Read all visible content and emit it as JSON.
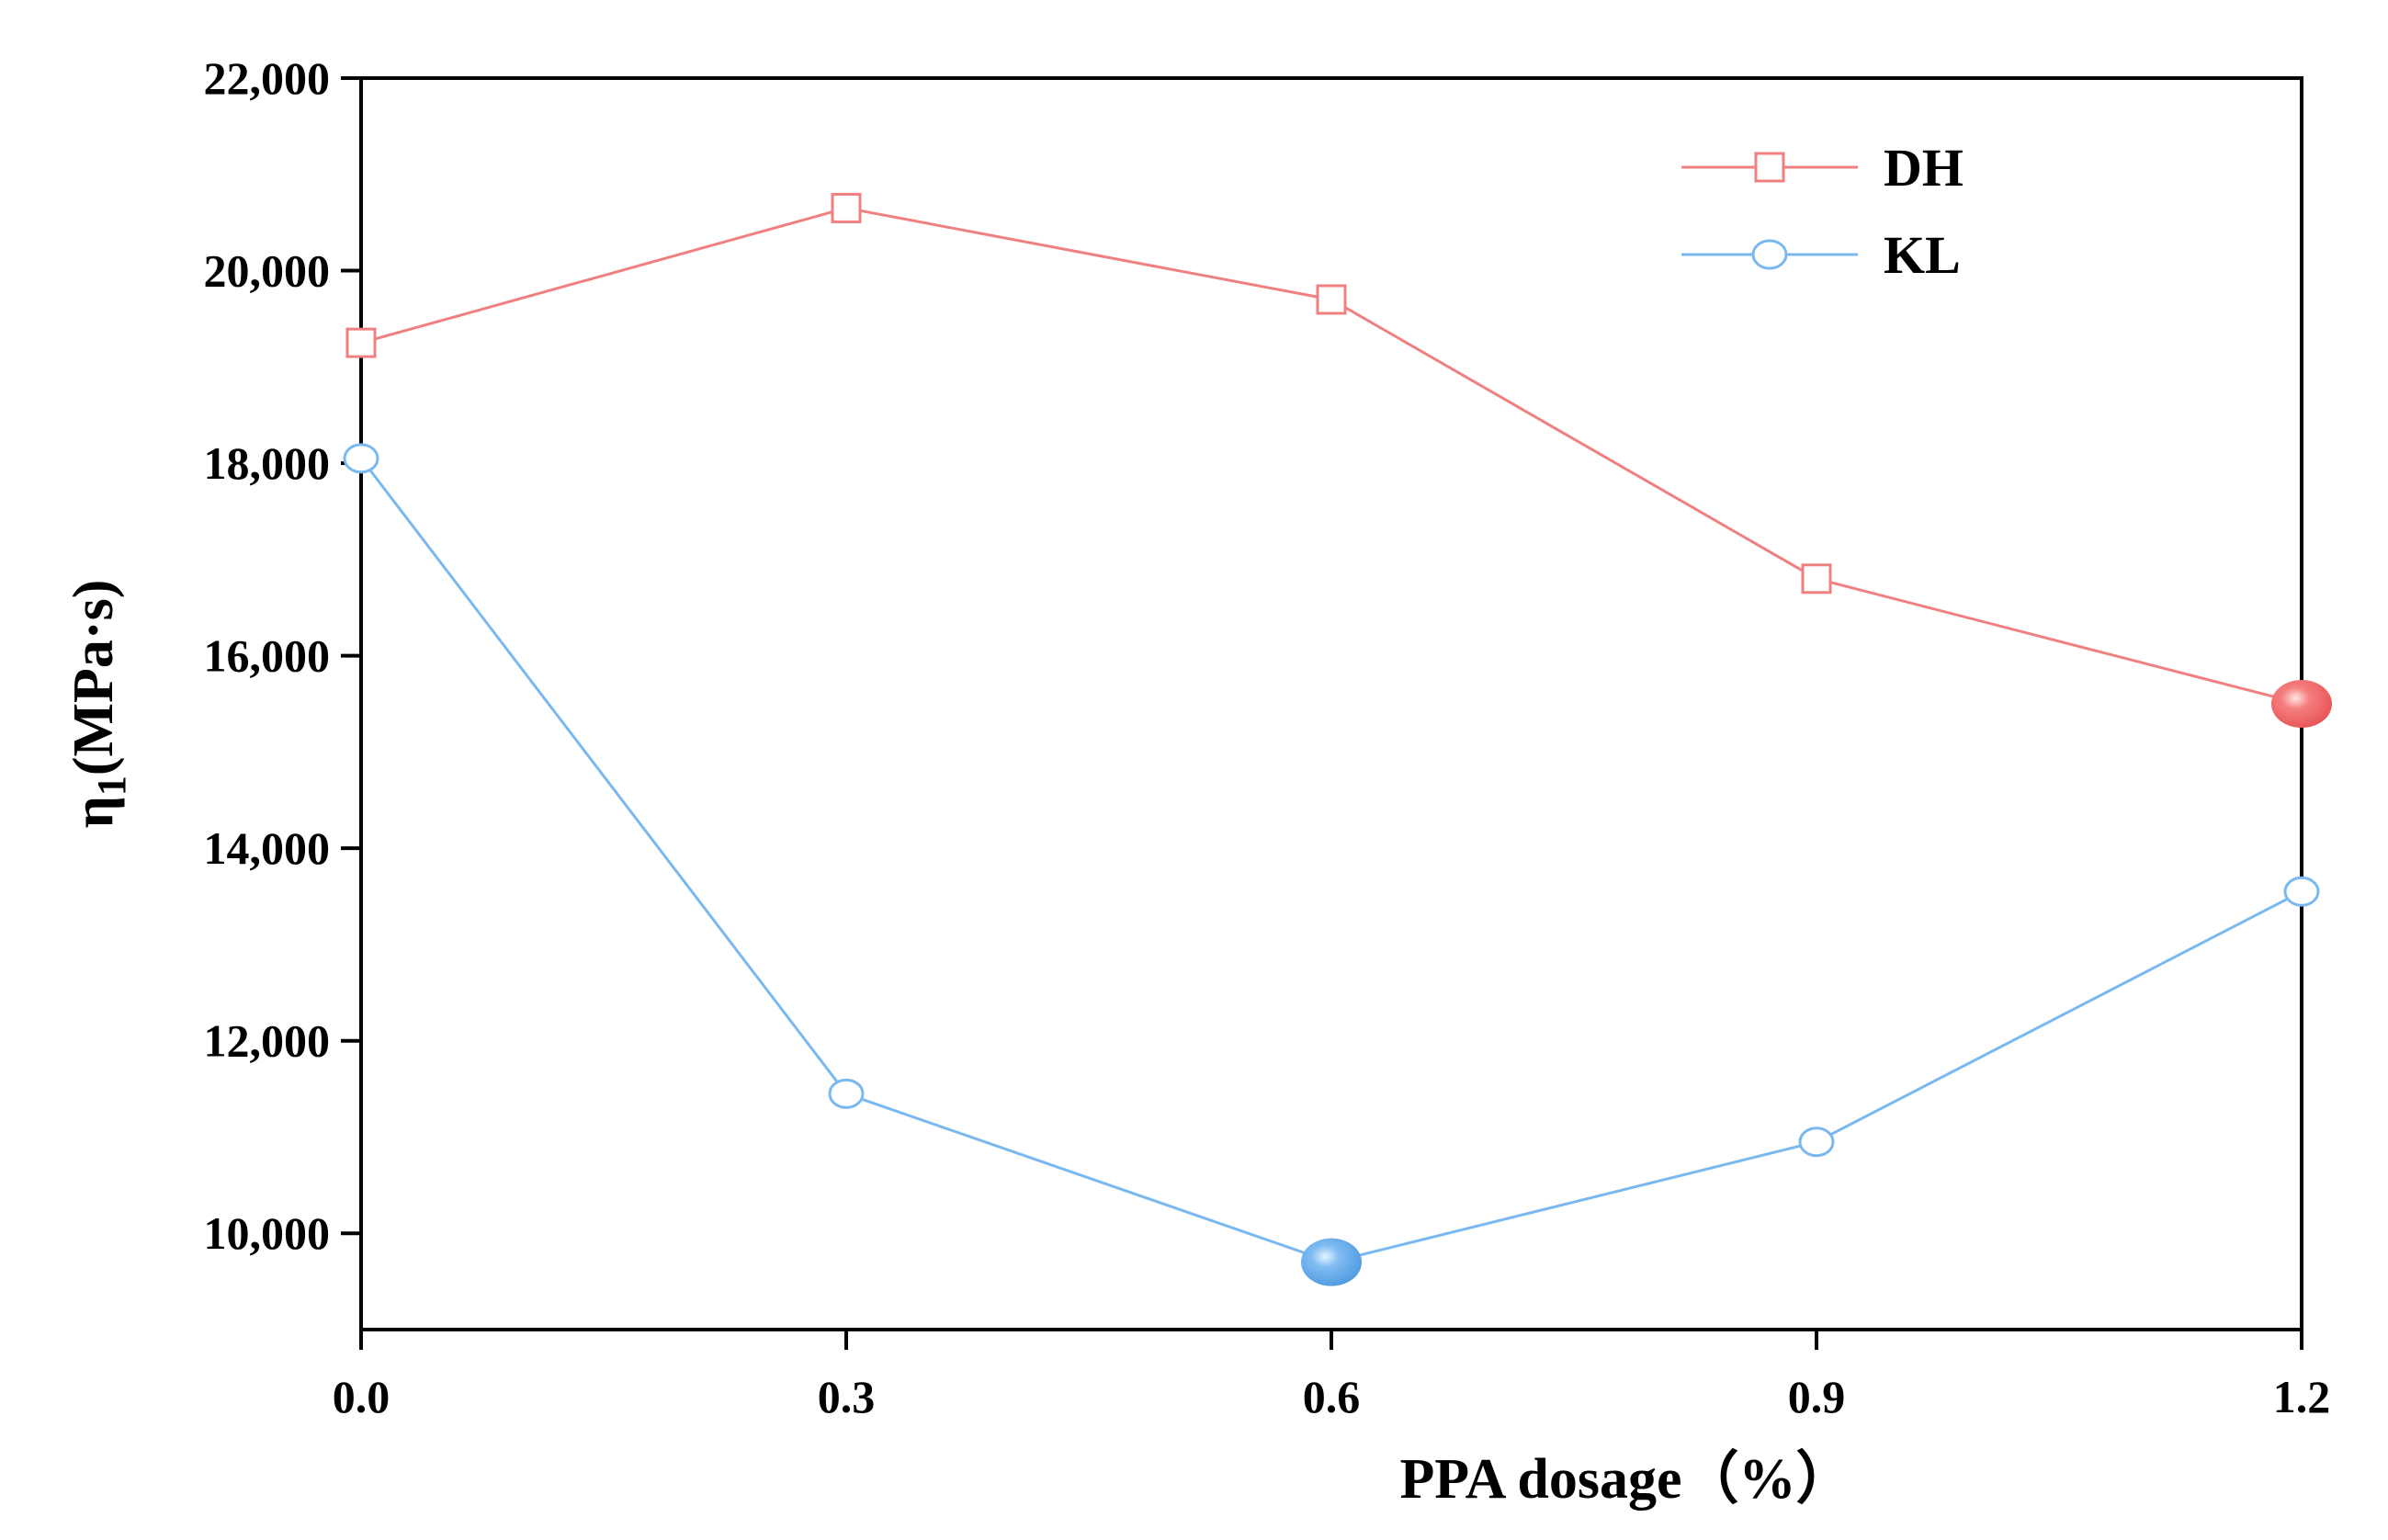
{
  "chart_data": {
    "type": "line",
    "xlabel": "PPA dosage（%）",
    "ylabel_main": "η",
    "ylabel_sub": "1",
    "ylabel_unit": "(MPa·s)",
    "xlim": [
      0.0,
      1.2
    ],
    "ylim": [
      9000,
      22000
    ],
    "x_ticks": [
      0.0,
      0.3,
      0.6,
      0.9,
      1.2
    ],
    "x_tick_labels": [
      "0.0",
      "0.3",
      "0.6",
      "0.9",
      "1.2"
    ],
    "y_ticks": [
      10000,
      12000,
      14000,
      16000,
      18000,
      20000,
      22000
    ],
    "y_tick_labels": [
      "10,000",
      "12,000",
      "14,000",
      "16,000",
      "18,000",
      "20,000",
      "22,000"
    ],
    "grid": false,
    "legend_position": "top-right",
    "x": [
      0.0,
      0.3,
      0.6,
      0.9,
      1.2
    ],
    "series": [
      {
        "name": "DH",
        "marker": "square",
        "color": "#f08080",
        "values": [
          19250,
          20650,
          19700,
          16800,
          15500
        ],
        "highlight_index": 4
      },
      {
        "name": "KL",
        "marker": "circle",
        "color": "#7ab8f0",
        "values": [
          18050,
          11450,
          9700,
          10950,
          13550
        ],
        "highlight_index": 2
      }
    ]
  }
}
